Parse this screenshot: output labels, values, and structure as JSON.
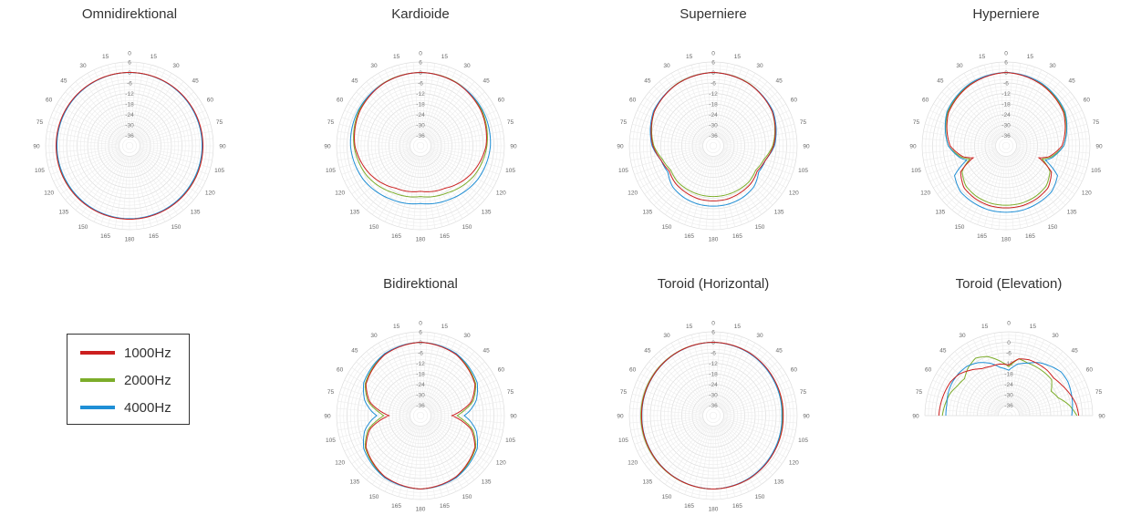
{
  "legend": {
    "items": [
      {
        "label": "1000Hz",
        "color": "#cc1f1f"
      },
      {
        "label": "2000Hz",
        "color": "#7cad2a"
      },
      {
        "label": "4000Hz",
        "color": "#1f8fd6"
      }
    ]
  },
  "chart_data": [
    {
      "type": "polar",
      "title": "Omnidirektional",
      "angle_range": [
        0,
        360
      ],
      "angle_tick_labels": [
        "0",
        "15",
        "30",
        "45",
        "60",
        "75",
        "90",
        "105",
        "120",
        "135",
        "150",
        "165",
        "180",
        "165",
        "150",
        "135",
        "120",
        "105",
        "90",
        "75",
        "60",
        "45",
        "30",
        "15"
      ],
      "radial_tick_labels": [
        "6",
        "0",
        "-6",
        "-12",
        "-18",
        "-24",
        "-30",
        "-36"
      ],
      "rlim": [
        -42,
        6
      ],
      "grid": true,
      "series": [
        {
          "name": "1000Hz",
          "angles": [
            0,
            30,
            60,
            90,
            120,
            150,
            180,
            210,
            240,
            270,
            300,
            330,
            360
          ],
          "values": [
            0,
            0,
            0,
            0,
            0,
            0,
            0,
            0,
            0,
            0,
            0,
            0,
            0
          ]
        },
        {
          "name": "2000Hz",
          "angles": [
            0,
            30,
            60,
            90,
            120,
            150,
            180,
            210,
            240,
            270,
            300,
            330,
            360
          ],
          "values": [
            0,
            -0.1,
            -0.2,
            -0.3,
            -0.3,
            -0.2,
            -0.2,
            -0.2,
            -0.3,
            -0.3,
            -0.2,
            -0.1,
            0
          ]
        },
        {
          "name": "4000Hz",
          "angles": [
            0,
            30,
            60,
            90,
            120,
            150,
            180,
            210,
            240,
            270,
            300,
            330,
            360
          ],
          "values": [
            0,
            -0.2,
            -0.4,
            -0.5,
            -0.6,
            -0.4,
            -0.3,
            -0.4,
            -0.6,
            -0.5,
            -0.4,
            -0.2,
            0
          ]
        }
      ]
    },
    {
      "type": "polar",
      "title": "Kardioide",
      "angle_range": [
        0,
        360
      ],
      "angle_tick_labels": [
        "0",
        "15",
        "30",
        "45",
        "60",
        "75",
        "90",
        "105",
        "120",
        "135",
        "150",
        "165",
        "180",
        "165",
        "150",
        "135",
        "120",
        "105",
        "90",
        "75",
        "60",
        "45",
        "30",
        "15"
      ],
      "radial_tick_labels": [
        "6",
        "0",
        "-6",
        "-12",
        "-18",
        "-24",
        "-30",
        "-36"
      ],
      "rlim": [
        -42,
        6
      ],
      "grid": true,
      "series": [
        {
          "name": "1000Hz",
          "angles": [
            0,
            30,
            60,
            90,
            120,
            150,
            180,
            210,
            240,
            270,
            300,
            330,
            360
          ],
          "values": [
            0,
            -0.5,
            -2,
            -4.5,
            -9,
            -14,
            -16,
            -14,
            -9,
            -4.5,
            -2,
            -0.5,
            0
          ]
        },
        {
          "name": "2000Hz",
          "angles": [
            0,
            30,
            60,
            90,
            120,
            150,
            180,
            210,
            240,
            270,
            300,
            330,
            360
          ],
          "values": [
            0,
            -0.3,
            -1.5,
            -4,
            -7,
            -11,
            -13,
            -11,
            -7,
            -4,
            -1.5,
            -0.3,
            0
          ]
        },
        {
          "name": "4000Hz",
          "angles": [
            0,
            30,
            60,
            90,
            120,
            150,
            180,
            210,
            240,
            270,
            300,
            330,
            360
          ],
          "values": [
            0,
            -0.5,
            -1,
            -2,
            -4,
            -7,
            -9,
            -7,
            -4,
            -2,
            -1,
            -0.5,
            0
          ]
        }
      ]
    },
    {
      "type": "polar",
      "title": "Superniere",
      "angle_range": [
        0,
        360
      ],
      "angle_tick_labels": [
        "0",
        "15",
        "30",
        "45",
        "60",
        "75",
        "90",
        "105",
        "120",
        "135",
        "150",
        "165",
        "180",
        "165",
        "150",
        "135",
        "120",
        "105",
        "90",
        "75",
        "60",
        "45",
        "30",
        "15"
      ],
      "radial_tick_labels": [
        "6",
        "0",
        "-6",
        "-12",
        "-18",
        "-24",
        "-30",
        "-36"
      ],
      "rlim": [
        -42,
        6
      ],
      "grid": true,
      "series": [
        {
          "name": "1000Hz",
          "angles": [
            0,
            30,
            60,
            90,
            105,
            120,
            135,
            150,
            165,
            180,
            195,
            210,
            225,
            240,
            255,
            270,
            300,
            330,
            360
          ],
          "values": [
            0,
            -1,
            -3,
            -7.5,
            -11,
            -13,
            -11.5,
            -11,
            -10.5,
            -10.5,
            -10.5,
            -11,
            -11.5,
            -13,
            -11,
            -7.5,
            -3,
            -1,
            0
          ]
        },
        {
          "name": "2000Hz",
          "angles": [
            0,
            30,
            60,
            90,
            105,
            120,
            135,
            150,
            165,
            180,
            195,
            210,
            225,
            240,
            255,
            270,
            300,
            330,
            360
          ],
          "values": [
            0,
            -0.8,
            -3,
            -8,
            -12,
            -14,
            -13,
            -13,
            -13,
            -13,
            -13,
            -13,
            -13,
            -14,
            -12,
            -8,
            -3,
            -0.8,
            0
          ]
        },
        {
          "name": "4000Hz",
          "angles": [
            0,
            30,
            60,
            90,
            105,
            120,
            135,
            150,
            165,
            180,
            195,
            210,
            225,
            240,
            255,
            270,
            300,
            330,
            360
          ],
          "values": [
            0,
            -1,
            -2.5,
            -7,
            -11,
            -12,
            -9,
            -8,
            -7.5,
            -7.5,
            -7.5,
            -8,
            -9,
            -12,
            -11,
            -7,
            -2.5,
            -1,
            0
          ]
        }
      ]
    },
    {
      "type": "polar",
      "title": "Hyperniere",
      "angle_range": [
        0,
        360
      ],
      "angle_tick_labels": [
        "0",
        "15",
        "30",
        "45",
        "60",
        "75",
        "90",
        "105",
        "120",
        "135",
        "150",
        "165",
        "180",
        "165",
        "150",
        "135",
        "120",
        "105",
        "90",
        "75",
        "60",
        "45",
        "30",
        "15"
      ],
      "radial_tick_labels": [
        "6",
        "0",
        "-6",
        "-12",
        "-18",
        "-24",
        "-30",
        "-36"
      ],
      "rlim": [
        -42,
        6
      ],
      "grid": true,
      "series": [
        {
          "name": "1000Hz",
          "angles": [
            0,
            30,
            60,
            90,
            105,
            110,
            120,
            135,
            150,
            165,
            180,
            195,
            210,
            225,
            240,
            250,
            255,
            270,
            300,
            330,
            360
          ],
          "values": [
            0,
            -1.5,
            -4,
            -10,
            -17,
            -22,
            -12,
            -8,
            -7,
            -6.5,
            -6.5,
            -6.5,
            -7,
            -8,
            -12,
            -22,
            -17,
            -10,
            -4,
            -1.5,
            0
          ]
        },
        {
          "name": "2000Hz",
          "angles": [
            0,
            30,
            60,
            90,
            105,
            110,
            120,
            135,
            150,
            165,
            180,
            195,
            210,
            225,
            240,
            250,
            255,
            270,
            300,
            330,
            360
          ],
          "values": [
            0,
            -1.2,
            -3.5,
            -9,
            -16,
            -20,
            -13,
            -9.5,
            -8.5,
            -8,
            -8,
            -8,
            -8.5,
            -9.5,
            -13,
            -20,
            -16,
            -9,
            -3.5,
            -1.2,
            0
          ]
        },
        {
          "name": "4000Hz",
          "angles": [
            0,
            30,
            60,
            90,
            105,
            110,
            120,
            135,
            150,
            165,
            180,
            195,
            210,
            225,
            240,
            250,
            255,
            270,
            300,
            330,
            360
          ],
          "values": [
            0,
            -0.8,
            -3,
            -9,
            -15,
            -18,
            -8,
            -5,
            -4.5,
            -4,
            -4,
            -4,
            -4.5,
            -5,
            -8,
            -18,
            -15,
            -9,
            -3,
            -0.8,
            0
          ]
        }
      ]
    },
    {
      "type": "polar",
      "title": "Bidirektional",
      "angle_range": [
        0,
        360
      ],
      "angle_tick_labels": [
        "0",
        "15",
        "30",
        "45",
        "60",
        "75",
        "90",
        "105",
        "120",
        "135",
        "150",
        "165",
        "180",
        "165",
        "150",
        "135",
        "120",
        "105",
        "90",
        "75",
        "60",
        "45",
        "30",
        "15"
      ],
      "radial_tick_labels": [
        "6",
        "0",
        "-6",
        "-12",
        "-18",
        "-24",
        "-30",
        "-36"
      ],
      "rlim": [
        -42,
        6
      ],
      "grid": true,
      "series": [
        {
          "name": "1000Hz",
          "angles": [
            0,
            30,
            60,
            75,
            85,
            90,
            95,
            105,
            120,
            150,
            180,
            210,
            240,
            255,
            265,
            270,
            275,
            285,
            300,
            330,
            360
          ],
          "values": [
            0,
            -1.5,
            -6,
            -12,
            -20,
            -24,
            -20,
            -12,
            -6,
            -1.5,
            0,
            -1.5,
            -6,
            -12,
            -20,
            -24,
            -20,
            -12,
            -6,
            -1.5,
            0
          ]
        },
        {
          "name": "2000Hz",
          "angles": [
            0,
            30,
            60,
            75,
            85,
            90,
            95,
            105,
            120,
            150,
            180,
            210,
            240,
            255,
            265,
            270,
            275,
            285,
            300,
            330,
            360
          ],
          "values": [
            0,
            -1.2,
            -5.5,
            -11,
            -18,
            -21,
            -18,
            -11,
            -5.5,
            -1.2,
            0,
            -1.2,
            -5.5,
            -11,
            -18,
            -21,
            -18,
            -11,
            -5.5,
            -1.2,
            0
          ]
        },
        {
          "name": "4000Hz",
          "angles": [
            0,
            30,
            60,
            75,
            85,
            90,
            95,
            105,
            120,
            150,
            180,
            210,
            240,
            255,
            265,
            270,
            275,
            285,
            300,
            330,
            360
          ],
          "values": [
            0,
            -1,
            -4.5,
            -9,
            -14,
            -17,
            -14,
            -9,
            -4.5,
            -1,
            0,
            -1,
            -4.5,
            -9,
            -14,
            -17,
            -14,
            -9,
            -4.5,
            -1,
            0
          ]
        }
      ]
    },
    {
      "type": "polar",
      "title": "Toroid (Horizontal)",
      "angle_range": [
        0,
        360
      ],
      "angle_tick_labels": [
        "0",
        "15",
        "30",
        "45",
        "60",
        "75",
        "90",
        "105",
        "120",
        "135",
        "150",
        "165",
        "180",
        "165",
        "150",
        "135",
        "120",
        "105",
        "90",
        "75",
        "60",
        "45",
        "30",
        "15"
      ],
      "radial_tick_labels": [
        "6",
        "0",
        "-6",
        "-12",
        "-18",
        "-24",
        "-30",
        "-36"
      ],
      "rlim": [
        -42,
        6
      ],
      "grid": true,
      "series": [
        {
          "name": "1000Hz",
          "angles": [
            0,
            30,
            60,
            90,
            120,
            150,
            180,
            210,
            240,
            270,
            300,
            330,
            360
          ],
          "values": [
            0,
            -0.5,
            -1.5,
            -2,
            -1.5,
            -0.5,
            0,
            -0.3,
            -0.8,
            -1,
            -0.8,
            -0.3,
            0
          ]
        },
        {
          "name": "2000Hz",
          "angles": [
            0,
            30,
            60,
            90,
            120,
            150,
            180,
            210,
            240,
            270,
            300,
            330,
            360
          ],
          "values": [
            0,
            -0.6,
            -1.8,
            -2.4,
            -1.8,
            -0.6,
            0,
            -0.2,
            -0.5,
            -0.6,
            -0.5,
            -0.2,
            0
          ]
        },
        {
          "name": "4000Hz",
          "angles": [
            0,
            30,
            60,
            90,
            120,
            150,
            180,
            210,
            240,
            270,
            300,
            330,
            360
          ],
          "values": [
            0,
            -0.8,
            -2,
            -2.8,
            -2,
            -0.8,
            0,
            -0.4,
            -0.9,
            -1.2,
            -0.9,
            -0.4,
            0
          ]
        }
      ]
    },
    {
      "type": "polar",
      "title": "Toroid (Elevation)",
      "angle_range": [
        -90,
        90
      ],
      "angle_tick_labels": [
        "90",
        "75",
        "60",
        "45",
        "30",
        "15",
        "0",
        "15",
        "30",
        "45",
        "60",
        "75",
        "90"
      ],
      "radial_tick_labels": [
        "0",
        "-6",
        "-12",
        "-18",
        "-24",
        "-30",
        "-36"
      ],
      "rlim": [
        -42,
        6
      ],
      "grid": true,
      "series": [
        {
          "name": "1000Hz",
          "angles": [
            -90,
            -80,
            -70,
            -60,
            -50,
            -40,
            -30,
            -20,
            -10,
            0,
            10,
            20,
            30,
            40,
            50,
            60,
            70,
            80,
            90
          ],
          "values": [
            -2,
            -2.5,
            -3,
            -3.5,
            -5,
            -8,
            -11,
            -12,
            -12,
            -13,
            -9,
            -8,
            -8,
            -8,
            -8.5,
            -7,
            -5,
            -3,
            -2
          ]
        },
        {
          "name": "2000Hz",
          "angles": [
            -90,
            -80,
            -70,
            -60,
            -50,
            -40,
            -30,
            -20,
            -10,
            0,
            10,
            20,
            30,
            40,
            50,
            60,
            70,
            80,
            90
          ],
          "values": [
            -4,
            -5,
            -6,
            -8,
            -9,
            -6,
            -4,
            -6,
            -10,
            -14,
            -9,
            -10,
            -10,
            -10,
            -10,
            -14,
            -12,
            -7,
            -3
          ]
        },
        {
          "name": "4000Hz",
          "angles": [
            -90,
            -80,
            -70,
            -60,
            -50,
            -40,
            -30,
            -20,
            -10,
            0,
            10,
            20,
            30,
            40,
            50,
            60,
            70,
            80,
            90
          ],
          "values": [
            -6,
            -6,
            -5,
            -4.5,
            -4.5,
            -5,
            -7,
            -10,
            -14,
            -16,
            -12,
            -10,
            -7,
            -5,
            -3,
            -3,
            -4,
            -5,
            -6
          ]
        }
      ]
    }
  ]
}
